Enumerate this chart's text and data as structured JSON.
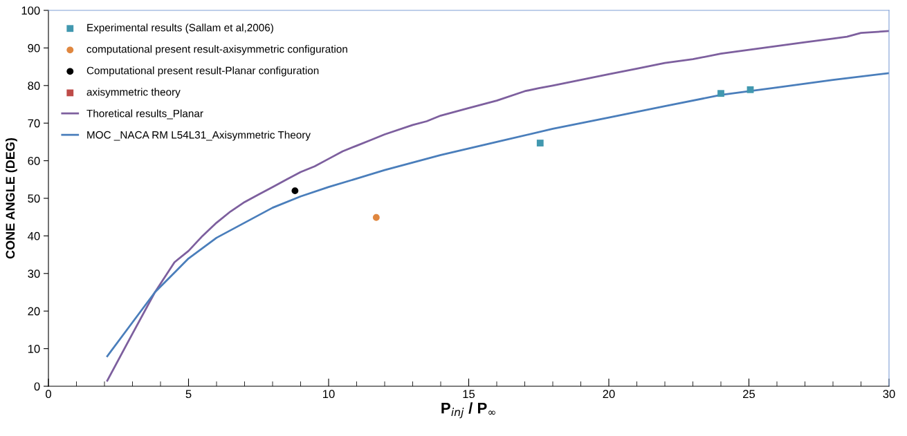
{
  "chart_data": {
    "type": "line",
    "xlabel": "P$_{inj}$ / P$_{∞}$",
    "ylabel": "CONE ANGLE (DEG)",
    "xlim": [
      0,
      30
    ],
    "xticks": [
      0,
      5,
      10,
      15,
      20,
      25,
      30
    ],
    "ylim": [
      0,
      100
    ],
    "yticks": [
      0,
      10,
      20,
      30,
      40,
      50,
      60,
      70,
      80,
      90,
      100
    ],
    "grid": false,
    "legend": "top left",
    "series": [
      {
        "name": "Experimental results (Sallam et al,2006)",
        "type": "scatter",
        "marker": "square",
        "color": "#4198af",
        "x": [
          17.55,
          24.0,
          25.05
        ],
        "values": [
          64.7,
          77.9,
          78.9
        ]
      },
      {
        "name": "computational present result-axisymmetric configuration",
        "type": "scatter",
        "marker": "circle",
        "color": "#e0873f",
        "x": [
          11.7
        ],
        "values": [
          44.9
        ]
      },
      {
        "name": "Computational present result-Planar configuration",
        "type": "scatter",
        "marker": "circle",
        "color": "#000000",
        "x": [
          8.8
        ],
        "values": [
          52.0
        ]
      },
      {
        "name": "axisymmetric theory",
        "type": "scatter",
        "marker": "square",
        "color": "#be4b48"
      },
      {
        "name": "Thoretical results_Planar",
        "color": "#7d5f9e",
        "x": [
          2.1,
          3,
          3.8,
          4.5,
          5,
          5.5,
          6,
          6.5,
          7,
          7.5,
          8,
          8.5,
          9,
          9.5,
          10,
          10.5,
          11,
          11.5,
          12,
          13,
          13.5,
          14,
          15,
          16,
          17,
          17.5,
          18,
          19,
          20,
          21,
          22,
          23,
          24,
          25,
          26,
          27,
          28,
          28.5,
          29,
          30
        ],
        "values": [
          1.5,
          14,
          25,
          33,
          36,
          40,
          43.5,
          46.5,
          49,
          51,
          53,
          55,
          57,
          58.5,
          60.5,
          62.5,
          64,
          65.5,
          67,
          69.5,
          70.5,
          72,
          74,
          76,
          78.5,
          79.3,
          80,
          81.5,
          83,
          84.5,
          86,
          87,
          88.5,
          89.5,
          90.5,
          91.5,
          92.5,
          93,
          94,
          94.5
        ]
      },
      {
        "name": "MOC _NACA RM L54L31_Axisymmetric Theory",
        "color": "#4a7ebb",
        "x": [
          2.1,
          3,
          3.8,
          5,
          6,
          7,
          8,
          9,
          10,
          12,
          14,
          16,
          18,
          20,
          22,
          24,
          26,
          28,
          30
        ],
        "values": [
          8,
          17,
          25,
          34,
          39.5,
          43.5,
          47.5,
          50.5,
          53,
          57.5,
          61.5,
          65,
          68.5,
          71.5,
          74.5,
          77.5,
          79.5,
          81.5,
          83.3
        ]
      }
    ]
  }
}
